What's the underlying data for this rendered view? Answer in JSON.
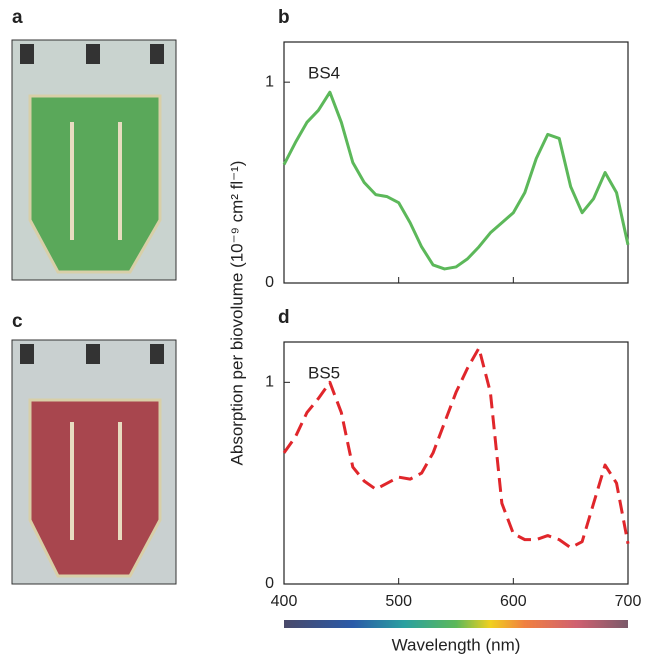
{
  "photos": [
    {
      "label": "a"
    },
    {
      "label": "c"
    }
  ],
  "chart_data": [
    {
      "type": "line",
      "label": "b",
      "ylabel": "Absorption per biovolume (10⁻⁹ cm² fl⁻¹)",
      "x": [
        400,
        410,
        420,
        430,
        440,
        450,
        460,
        470,
        480,
        490,
        500,
        510,
        520,
        530,
        540,
        550,
        560,
        570,
        580,
        590,
        600,
        610,
        620,
        630,
        640,
        650,
        660,
        670,
        680,
        690,
        700
      ],
      "series": [
        {
          "name": "BS4",
          "color": "#5cb85a",
          "linestyle": "solid",
          "values": [
            0.59,
            0.7,
            0.8,
            0.86,
            0.95,
            0.8,
            0.6,
            0.5,
            0.44,
            0.43,
            0.4,
            0.3,
            0.18,
            0.09,
            0.07,
            0.08,
            0.12,
            0.18,
            0.25,
            0.3,
            0.35,
            0.45,
            0.62,
            0.74,
            0.72,
            0.48,
            0.35,
            0.42,
            0.55,
            0.45,
            0.19
          ]
        }
      ],
      "xlim": [
        400,
        700
      ],
      "xticks": [
        400,
        500,
        600,
        700
      ],
      "ylim": [
        0,
        1.2
      ],
      "yticks": [
        0,
        1
      ]
    },
    {
      "type": "line",
      "label": "d",
      "xlabel": "Wavelength (nm)",
      "x": [
        400,
        410,
        420,
        430,
        440,
        450,
        460,
        470,
        480,
        490,
        500,
        510,
        520,
        530,
        540,
        550,
        560,
        570,
        580,
        590,
        600,
        610,
        620,
        630,
        640,
        650,
        660,
        670,
        680,
        690,
        700
      ],
      "series": [
        {
          "name": "BS5",
          "color": "#e0262b",
          "linestyle": "dashed",
          "values": [
            0.65,
            0.73,
            0.85,
            0.92,
            1.0,
            0.85,
            0.58,
            0.51,
            0.47,
            0.5,
            0.53,
            0.52,
            0.55,
            0.65,
            0.8,
            0.95,
            1.07,
            1.17,
            0.95,
            0.4,
            0.25,
            0.22,
            0.22,
            0.24,
            0.22,
            0.18,
            0.21,
            0.4,
            0.59,
            0.5,
            0.2
          ]
        }
      ],
      "xlim": [
        400,
        700
      ],
      "xticks": [
        400,
        500,
        600,
        700
      ],
      "ylim": [
        0,
        1.2
      ],
      "yticks": [
        0,
        1
      ]
    }
  ]
}
